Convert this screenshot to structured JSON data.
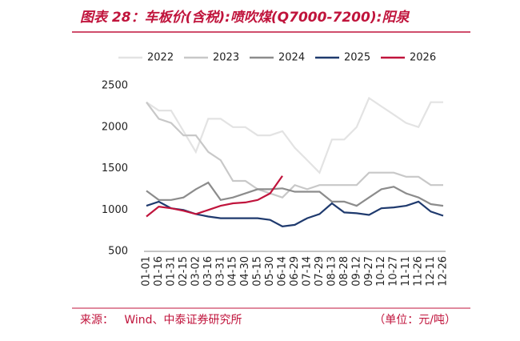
{
  "chart_data": {
    "type": "line",
    "title": "图表 28：车板价(含税):喷吹煤(Q7000-7200):阳泉",
    "categories": [
      "01-01",
      "01-16",
      "01-31",
      "02-15",
      "03-02",
      "03-16",
      "03-31",
      "04-15",
      "04-30",
      "05-15",
      "05-30",
      "06-14",
      "06-29",
      "07-14",
      "07-29",
      "08-13",
      "08-28",
      "09-12",
      "09-27",
      "10-12",
      "10-27",
      "11-11",
      "11-26",
      "12-11",
      "12-26"
    ],
    "series": [
      {
        "name": "2022",
        "color": "#e3e3e3",
        "values": [
          2300,
          2200,
          2200,
          1950,
          1700,
          2100,
          2100,
          2000,
          2000,
          1900,
          1900,
          1950,
          1750,
          1600,
          1450,
          1850,
          1850,
          2000,
          2350,
          2250,
          2150,
          2050,
          2000,
          2300,
          2300
        ]
      },
      {
        "name": "2023",
        "color": "#c8c8c8",
        "values": [
          2300,
          2100,
          2050,
          1900,
          1900,
          1700,
          1600,
          1350,
          1350,
          1250,
          1200,
          1150,
          1300,
          1250,
          1300,
          1300,
          1300,
          1300,
          1450,
          1450,
          1450,
          1400,
          1400,
          1300,
          1300
        ]
      },
      {
        "name": "2024",
        "color": "#8c8c8c",
        "values": [
          1230,
          1120,
          1120,
          1150,
          1250,
          1330,
          1120,
          1150,
          1200,
          1250,
          1250,
          1260,
          1220,
          1220,
          1220,
          1100,
          1100,
          1050,
          1150,
          1250,
          1280,
          1200,
          1150,
          1070,
          1050
        ]
      },
      {
        "name": "2025",
        "color": "#1f3a6e",
        "values": [
          1050,
          1100,
          1020,
          1000,
          950,
          920,
          900,
          900,
          900,
          900,
          880,
          800,
          820,
          900,
          950,
          1080,
          970,
          960,
          940,
          1020,
          1030,
          1050,
          1100,
          980,
          930
        ]
      },
      {
        "name": "2026",
        "color": "#c0143c",
        "values": [
          920,
          1040,
          1020,
          990,
          950,
          1000,
          1050,
          1080,
          1090,
          1120,
          1200,
          1410,
          null,
          null,
          null,
          null,
          null,
          null,
          null,
          null,
          null,
          null,
          null,
          null,
          null
        ]
      }
    ],
    "ylim": [
      500,
      2500
    ],
    "yticks": [
      500,
      1000,
      1500,
      2000,
      2500
    ]
  },
  "footer": {
    "source": "来源：   Wind、中泰证券研究所",
    "unit": "（单位：元/吨）"
  }
}
